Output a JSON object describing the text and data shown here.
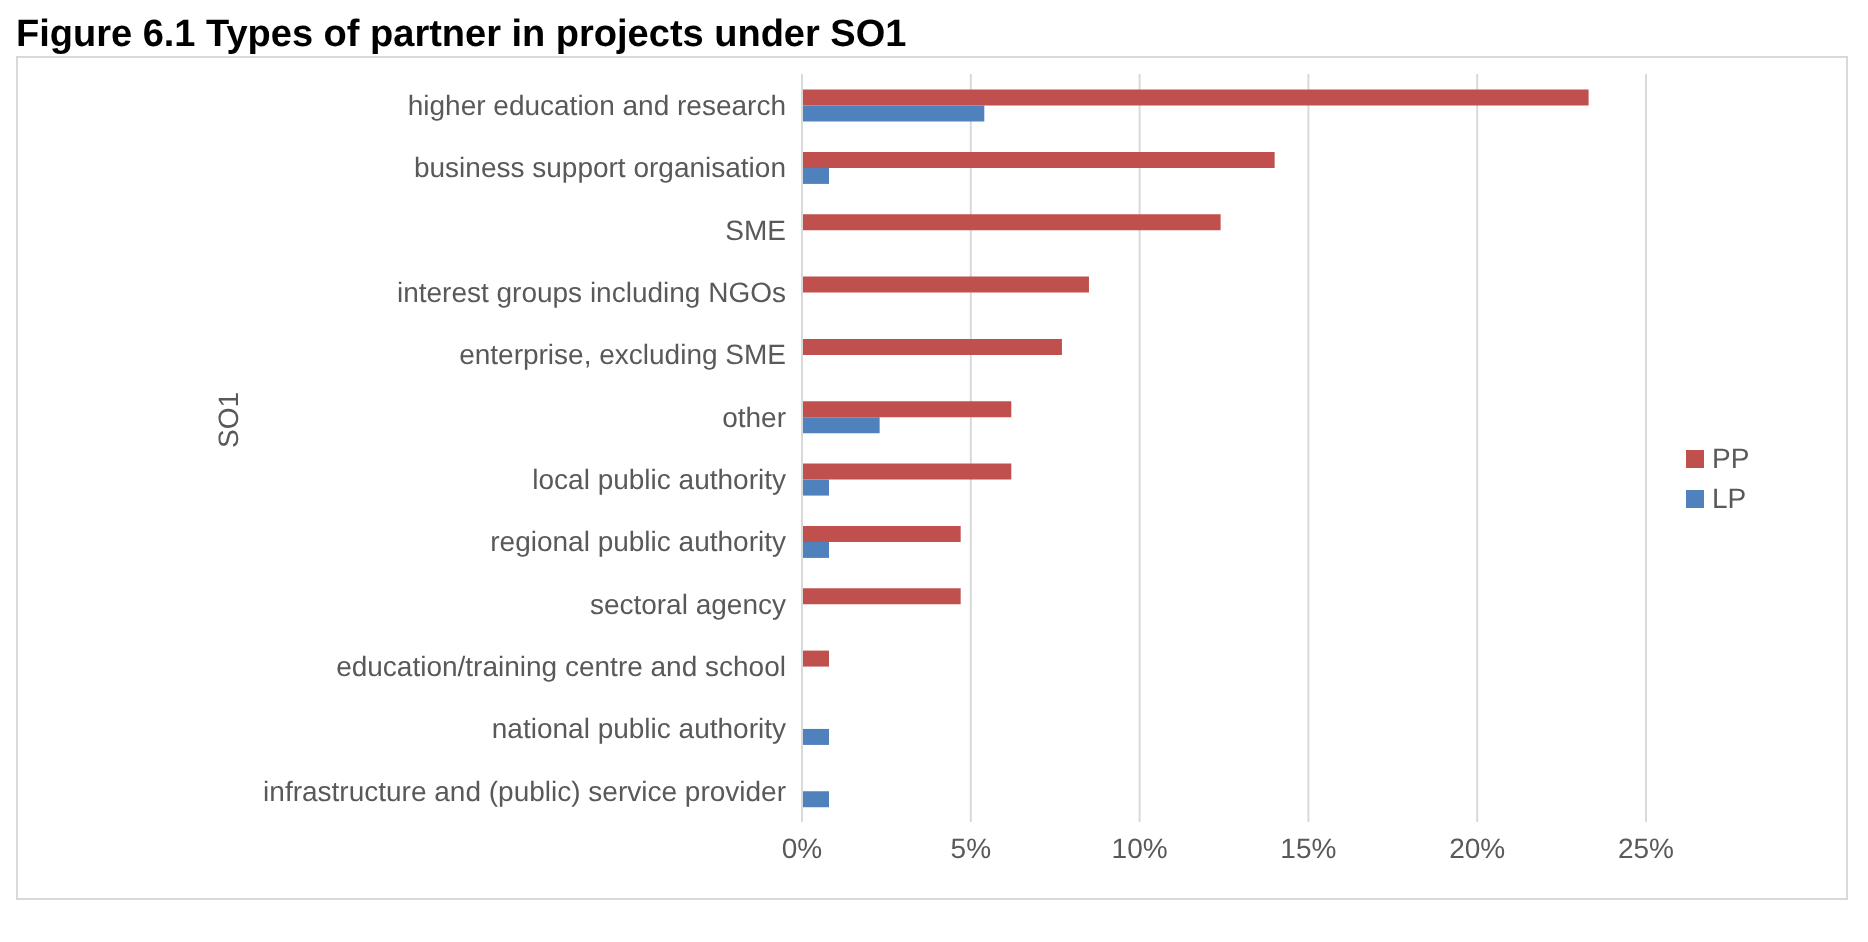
{
  "chart_data": {
    "type": "bar",
    "orientation": "horizontal",
    "title": "Figure 6.1      Types of partner in projects under SO1",
    "ylabel": "SO1",
    "categories": [
      "higher education and research",
      "business support organisation",
      "SME",
      "interest groups including NGOs",
      "enterprise, excluding SME",
      "other",
      "local public authority",
      "regional public authority",
      "sectoral agency",
      "education/training centre and school",
      "national public authority",
      "infrastructure and (public) service provider"
    ],
    "series": [
      {
        "name": "PP",
        "color": "#c0504d",
        "values": [
          23.3,
          14.0,
          12.4,
          8.5,
          7.7,
          6.2,
          6.2,
          4.7,
          4.7,
          0.8,
          null,
          null
        ]
      },
      {
        "name": "LP",
        "color": "#4f81bd",
        "values": [
          5.4,
          0.8,
          null,
          null,
          null,
          2.3,
          0.8,
          0.8,
          null,
          null,
          0.8,
          0.8
        ]
      }
    ],
    "xlim": [
      0,
      25
    ],
    "xticks": [
      {
        "value": 0,
        "label": "0%"
      },
      {
        "value": 5,
        "label": "5%"
      },
      {
        "value": 10,
        "label": "10%"
      },
      {
        "value": 15,
        "label": "15%"
      },
      {
        "value": 20,
        "label": "20%"
      },
      {
        "value": 25,
        "label": "25%"
      }
    ],
    "grid": "x",
    "legend": "right"
  }
}
